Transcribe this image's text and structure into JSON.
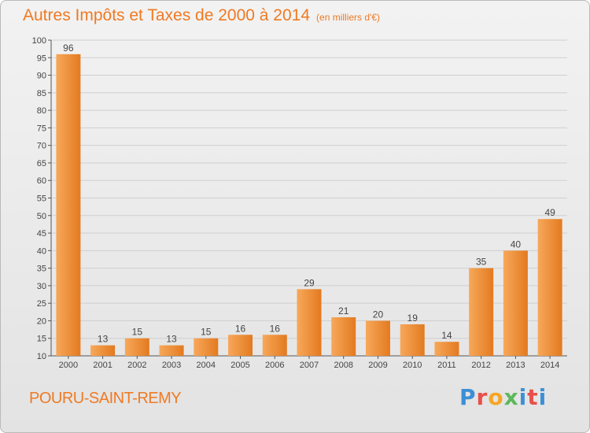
{
  "header": {
    "title": "Autres Impôts et Taxes de 2000 à 2014",
    "unit": "(en milliers d'€)"
  },
  "footer": {
    "commune": "POURU-SAINT-REMY",
    "logo_letters": [
      "P",
      "r",
      "o",
      "x",
      "i",
      "t",
      "i"
    ],
    "logo_colors": [
      "#3c8fd6",
      "#e94f4a",
      "#f5a623",
      "#5cb85c",
      "#3c8fd6",
      "#e94f4a",
      "#3c8fd6"
    ]
  },
  "colors": {
    "bar_light": "#f7a85a",
    "bar_dark": "#e37a20",
    "title": "#ef7a23",
    "grid": "#cfcfcf"
  },
  "chart_data": {
    "type": "bar",
    "title": "Autres Impôts et Taxes de 2000 à 2014",
    "subtitle": "(en milliers d'€)",
    "categories": [
      "2000",
      "2001",
      "2002",
      "2003",
      "2004",
      "2005",
      "2006",
      "2007",
      "2008",
      "2009",
      "2010",
      "2011",
      "2012",
      "2013",
      "2014"
    ],
    "values": [
      96,
      13,
      15,
      13,
      15,
      16,
      16,
      29,
      21,
      20,
      19,
      14,
      35,
      40,
      49
    ],
    "data_labels": [
      "96",
      "13",
      "15",
      "13",
      "15",
      "16",
      "16",
      "29",
      "21",
      "20",
      "19",
      "14",
      "35",
      "40",
      "49"
    ],
    "ylim": [
      10,
      100
    ],
    "yticks": [
      "10",
      "15",
      "20",
      "25",
      "30",
      "35",
      "40",
      "45",
      "50",
      "55",
      "60",
      "65",
      "70",
      "75",
      "80",
      "85",
      "90",
      "95",
      "100"
    ],
    "grid": true,
    "legend": "none"
  }
}
